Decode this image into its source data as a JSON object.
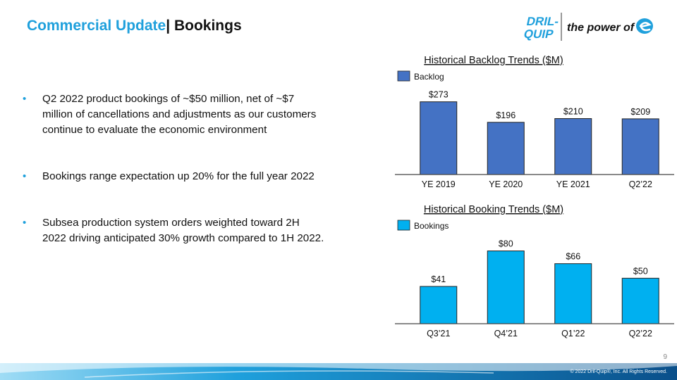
{
  "header": {
    "title_part1": "Commercial Update",
    "separator": "|",
    "title_part2": " Bookings",
    "logo_brand": "DRIL-QUIP",
    "tagline": "the power of"
  },
  "bullets": [
    "Q2 2022 product bookings of ~$50 million, net of ~$7 million of cancellations and adjustments as our customers continue to evaluate the economic environment",
    "Bookings range expectation up 20% for the full year 2022",
    "Subsea production system orders weighted toward 2H 2022 driving anticipated 30% growth compared to 1H 2022."
  ],
  "chart_data": [
    {
      "type": "bar",
      "title": "Historical Backlog Trends ($M)",
      "legend": "top-left",
      "categories": [
        "YE 2019",
        "YE 2020",
        "YE 2021",
        "Q2’22"
      ],
      "series": [
        {
          "name": "Backlog",
          "values": [
            273,
            196,
            210,
            209
          ],
          "color": "#4472c4"
        }
      ],
      "labels": [
        "$273",
        "$196",
        "$210",
        "$209"
      ],
      "ylim": [
        0,
        280
      ],
      "grid": false
    },
    {
      "type": "bar",
      "title": "Historical Booking Trends ($M)",
      "legend": "top-left",
      "categories": [
        "Q3’21",
        "Q4’21",
        "Q1’22",
        "Q2’22"
      ],
      "series": [
        {
          "name": "Bookings",
          "values": [
            41,
            80,
            66,
            50
          ],
          "color": "#00b0f0"
        }
      ],
      "labels": [
        "$41",
        "$80",
        "$66",
        "$50"
      ],
      "ylim": [
        0,
        82
      ],
      "grid": false
    }
  ],
  "footer": {
    "page_number": "9",
    "copyright": "© 2022 Dril-Quip®, Inc. All Rights Reserved."
  }
}
